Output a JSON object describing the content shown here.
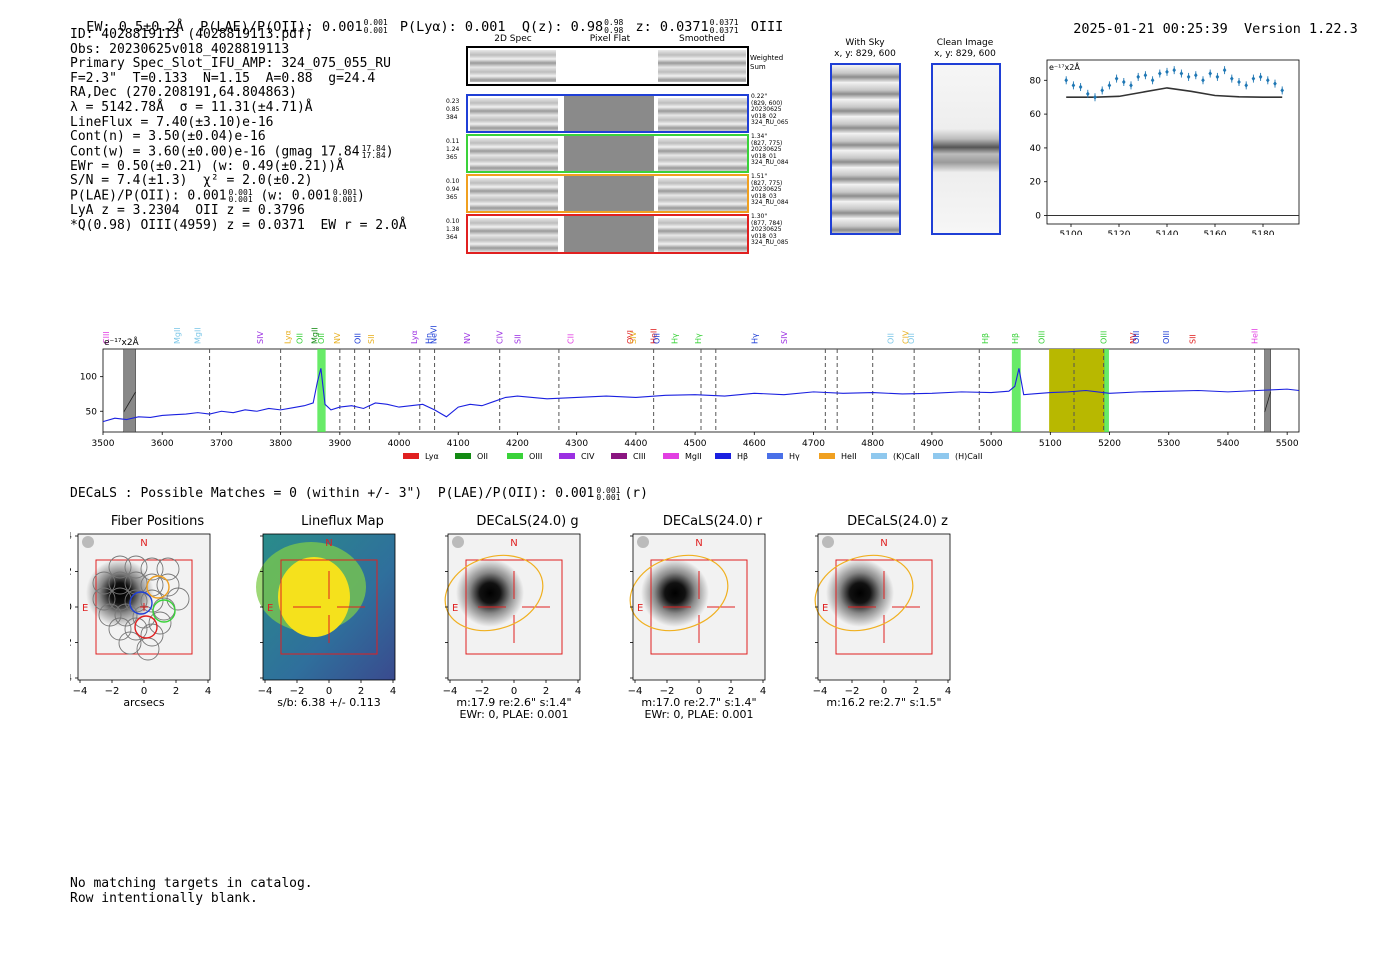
{
  "header": {
    "ew": "EW: 0.5±0.2Å",
    "plae": "P(LAE)/P(OII): 0.001",
    "plae_sup": "0.001",
    "plae_sub": "0.001",
    "plya": "P(Lyα): 0.001",
    "qz": "Q(z): 0.98",
    "qz_sup": "0.98",
    "qz_sub": "0.98",
    "z": "z: 0.0371",
    "z_sup": "0.0371",
    "z_sub": "0.0371",
    "line": "OIII",
    "timestamp": "2025-01-21 00:25:39",
    "version": "Version 1.22.3"
  },
  "info": {
    "lines": [
      "ID: 4028819113 (4028819113.pdf)",
      "Obs: 20230625v018_4028819113",
      "Primary Spec_Slot_IFU_AMP: 324_075_055_RU",
      "F=2.3\"  T=0.133  N=1.15  A=0.88  g=24.4",
      "RA,Dec (270.208191,64.804863)",
      "λ = 5142.78Å  σ = 11.31(±4.71)Å",
      "LineFlux = 7.40(±3.10)e-16",
      "Cont(n) = 3.50(±0.04)e-16",
      "Cont(w) = 3.60(±0.00)e-16 (gmag 17.84",
      "EWr = 0.50(±0.21) (w: 0.49(±0.21))Å",
      "S/N = 7.4(±1.3)  χ² = 2.0(±0.2)",
      "P(LAE)/P(OII): 0.001",
      "LyA z = 3.2304  OII z = 0.3796",
      "*Q(0.98) OIII(4959) z = 0.0371  EW r = 2.0Å"
    ],
    "gmag_sup": "17.84",
    "gmag_sub": "17.84",
    "plae_sup": "0.001",
    "plae_sub": "0.001",
    "plae_w": " (w: 0.001",
    "plae_w_sup": "0.001",
    "plae_w_sub": "0.001",
    "plae_w_close": ")"
  },
  "spectra_panel": {
    "col_2d": "2D Spec",
    "col_flat": "Pixel Flat",
    "col_smooth": "Smoothed",
    "weighted_sum": "Weighted Sum",
    "rows": [
      {
        "left": [
          "0.23",
          "0.85",
          "384"
        ],
        "right": [
          "0.22\"",
          "(829, 600)",
          "20230625",
          "v018_02",
          "324_RU_065"
        ],
        "color": "#1f3fd6"
      },
      {
        "left": [
          "0.11",
          "1.24",
          "365"
        ],
        "right": [
          "1.34\"",
          "(827, 775)",
          "20230625",
          "v018_01",
          "324_RU_084"
        ],
        "color": "#3ad23a"
      },
      {
        "left": [
          "0.10",
          "0.94",
          "365"
        ],
        "right": [
          "1.51\"",
          "(827, 775)",
          "20230625",
          "v018_03",
          "324_RU_084"
        ],
        "color": "#f0a020"
      },
      {
        "left": [
          "0.10",
          "1.38",
          "364"
        ],
        "right": [
          "1.30\"",
          "(877, 784)",
          "20230625",
          "v018_03",
          "324_RU_085"
        ],
        "color": "#e02020"
      }
    ]
  },
  "sky_panels": {
    "with_sky_title": "With Sky",
    "with_sky_coords": "x, y: 829, 600",
    "clean_title": "Clean Image",
    "clean_coords": "x, y: 829, 600"
  },
  "zoom_chart": {
    "unit_label": "e⁻¹⁷x2Å",
    "chart_data": {
      "type": "scatter",
      "x": [
        5098,
        5101,
        5104,
        5107,
        5110,
        5113,
        5116,
        5119,
        5122,
        5125,
        5128,
        5131,
        5134,
        5137,
        5140,
        5143,
        5146,
        5149,
        5152,
        5155,
        5158,
        5161,
        5164,
        5167,
        5170,
        5173,
        5176,
        5179,
        5182,
        5185,
        5188
      ],
      "y": [
        80,
        77,
        76,
        72,
        70,
        74,
        77,
        81,
        79,
        77,
        82,
        83,
        80,
        84,
        85,
        86,
        84,
        82,
        83,
        80,
        84,
        82,
        86,
        81,
        79,
        77,
        81,
        82,
        80,
        78,
        74
      ],
      "model_x": [
        5098,
        5110,
        5120,
        5130,
        5140,
        5150,
        5160,
        5170,
        5180,
        5188
      ],
      "model_y": [
        70,
        70,
        70.5,
        73,
        75.5,
        73.5,
        71,
        70.2,
        70,
        70
      ],
      "xlim": [
        5090,
        5195
      ],
      "ylim": [
        -5,
        92
      ],
      "xticks": [
        5100,
        5120,
        5140,
        5160,
        5180
      ],
      "yticks": [
        0,
        20,
        40,
        60,
        80
      ]
    }
  },
  "main_spectrum": {
    "unit_label": "e⁻¹⁷x2Å",
    "chart_data": {
      "type": "line",
      "xlim": [
        3500,
        5520
      ],
      "ylim": [
        20,
        140
      ],
      "xticks": [
        3500,
        3600,
        3700,
        3800,
        3900,
        4000,
        4100,
        4200,
        4300,
        4400,
        4500,
        4600,
        4700,
        4800,
        4900,
        5000,
        5100,
        5200,
        5300,
        5400,
        5500
      ],
      "yticks": [
        50,
        100
      ],
      "x": [
        3500,
        3520,
        3540,
        3560,
        3580,
        3600,
        3620,
        3640,
        3660,
        3680,
        3700,
        3720,
        3740,
        3760,
        3780,
        3800,
        3820,
        3840,
        3855,
        3862,
        3868,
        3875,
        3885,
        3900,
        3920,
        3940,
        3960,
        3980,
        4000,
        4020,
        4040,
        4060,
        4080,
        4100,
        4120,
        4140,
        4160,
        4180,
        4200,
        4250,
        4300,
        4350,
        4400,
        4450,
        4500,
        4550,
        4600,
        4650,
        4700,
        4750,
        4800,
        4850,
        4900,
        4950,
        5000,
        5030,
        5040,
        5047,
        5055,
        5070,
        5100,
        5130,
        5160,
        5200,
        5250,
        5300,
        5350,
        5400,
        5450,
        5500,
        5520
      ],
      "y": [
        35,
        40,
        38,
        42,
        41,
        44,
        45,
        46,
        48,
        46,
        50,
        48,
        52,
        50,
        54,
        52,
        55,
        58,
        62,
        92,
        112,
        60,
        52,
        56,
        58,
        54,
        62,
        60,
        56,
        58,
        60,
        52,
        42,
        56,
        60,
        58,
        64,
        70,
        72,
        68,
        70,
        72,
        70,
        73,
        74,
        72,
        76,
        74,
        78,
        76,
        77,
        75,
        76,
        78,
        77,
        79,
        86,
        112,
        74,
        75,
        77,
        78,
        80,
        76,
        78,
        79,
        80,
        78,
        80,
        82,
        80
      ],
      "shaded_green": [
        [
          3862,
          3876
        ],
        [
          5035,
          5050
        ],
        [
          5191,
          5199
        ]
      ],
      "shaded_olive": [
        [
          5098,
          5192
        ]
      ],
      "shaded_gray": [
        [
          3535,
          3555
        ],
        [
          5462,
          5472
        ]
      ],
      "dashed_lines": [
        3680,
        3800,
        3900,
        3925,
        3950,
        4035,
        4060,
        4170,
        4270,
        4430,
        4510,
        4535,
        4720,
        4740,
        4800,
        4870,
        4980,
        5140,
        5190,
        5445
      ],
      "line_labels": [
        {
          "name": "CIII",
          "x": 3505,
          "color": "#e23fe2"
        },
        {
          "name": "MgII",
          "x": 3625,
          "color": "#7fc8e8"
        },
        {
          "name": "MgII",
          "x": 3660,
          "color": "#7fc8e8"
        },
        {
          "name": "SIV",
          "x": 3765,
          "color": "#9b30e2"
        },
        {
          "name": "Lyα",
          "x": 3812,
          "color": "#e8b020"
        },
        {
          "name": "OII",
          "x": 3832,
          "color": "#3ad23a"
        },
        {
          "name": "MgII",
          "x": 3857,
          "color": "#138a13"
        },
        {
          "name": "OII",
          "x": 3868,
          "color": "#3ad23a"
        },
        {
          "name": "NV",
          "x": 3895,
          "color": "#e8b020"
        },
        {
          "name": "OII",
          "x": 3930,
          "color": "#1f3fd6"
        },
        {
          "name": "SII",
          "x": 3953,
          "color": "#e8b020"
        },
        {
          "name": "Lyα",
          "x": 4025,
          "color": "#9b30e2"
        },
        {
          "name": "Hη",
          "x": 4050,
          "color": "#1f3fd6"
        },
        {
          "name": "NeVI",
          "x": 4058,
          "color": "#1f3fd6"
        },
        {
          "name": "NV",
          "x": 4115,
          "color": "#9b30e2"
        },
        {
          "name": "CIV",
          "x": 4170,
          "color": "#9b30e2"
        },
        {
          "name": "SII",
          "x": 4200,
          "color": "#9b30e2"
        },
        {
          "name": "CII",
          "x": 4290,
          "color": "#e23fe2"
        },
        {
          "name": "OVI",
          "x": 4390,
          "color": "#e02020"
        },
        {
          "name": "SIV",
          "x": 4395,
          "color": "#e8b020"
        },
        {
          "name": "HeII",
          "x": 4430,
          "color": "#e02020"
        },
        {
          "name": "OII",
          "x": 4435,
          "color": "#1f3fd6"
        },
        {
          "name": "Hγ",
          "x": 4465,
          "color": "#3ad23a"
        },
        {
          "name": "Hγ",
          "x": 4505,
          "color": "#3ad23a"
        },
        {
          "name": "Hγ",
          "x": 4600,
          "color": "#1f3fd6"
        },
        {
          "name": "SIV",
          "x": 4650,
          "color": "#9b30e2"
        },
        {
          "name": "OII",
          "x": 4830,
          "color": "#7fc8e8"
        },
        {
          "name": "CIV",
          "x": 4855,
          "color": "#e8b020"
        },
        {
          "name": "OII",
          "x": 4865,
          "color": "#7fc8e8"
        },
        {
          "name": "Hβ",
          "x": 4990,
          "color": "#3ad23a"
        },
        {
          "name": "Hβ",
          "x": 5040,
          "color": "#3ad23a"
        },
        {
          "name": "OIII",
          "x": 5085,
          "color": "#3ad23a"
        },
        {
          "name": "OIII",
          "x": 5190,
          "color": "#3ad23a"
        },
        {
          "name": "NV",
          "x": 5240,
          "color": "#e02020"
        },
        {
          "name": "OIII",
          "x": 5245,
          "color": "#1f3fd6"
        },
        {
          "name": "OIII",
          "x": 5295,
          "color": "#1f3fd6"
        },
        {
          "name": "SII",
          "x": 5340,
          "color": "#e02020"
        },
        {
          "name": "HeII",
          "x": 5445,
          "color": "#e23fe2"
        }
      ],
      "legend": [
        {
          "label": "Lyα",
          "color": "#e02020"
        },
        {
          "label": "OII",
          "color": "#138a13"
        },
        {
          "label": "OIII",
          "color": "#3ad23a"
        },
        {
          "label": "CIV",
          "color": "#9b30e2"
        },
        {
          "label": "CIII",
          "color": "#8a1580"
        },
        {
          "label": "MgII",
          "color": "#e23fe2"
        },
        {
          "label": "Hβ",
          "color": "#1a20e0"
        },
        {
          "label": "Hγ",
          "color": "#4a70e8"
        },
        {
          "label": "HeII",
          "color": "#f0a020"
        },
        {
          "label": "(K)CaII",
          "color": "#8fc8ee"
        },
        {
          "label": "(H)CaII",
          "color": "#8fc8ee"
        }
      ]
    }
  },
  "decals": {
    "summary": "DECaLS : Possible Matches = 0 (within +/- 3\")  P(LAE)/P(OII): 0.001",
    "summary_sup": "0.001",
    "summary_sub": "0.001",
    "summary_tail": "(r)"
  },
  "cutouts": [
    {
      "title": "Fiber Positions",
      "caption1": "arcsecs",
      "caption2": "",
      "type": "fibers"
    },
    {
      "title": "Lineflux Map",
      "caption1": "s/b: 6.38 +/- 0.113",
      "caption2": "",
      "type": "lineflux"
    },
    {
      "title": "DECaLS(24.0) g",
      "caption1": "m:17.9  re:2.6\"  s:1.4\"",
      "caption2": "EWr: 0, PLAE: 0.001",
      "type": "decals"
    },
    {
      "title": "DECaLS(24.0) r",
      "caption1": "m:17.0  re:2.7\"  s:1.4\"",
      "caption2": "EWr: 0, PLAE: 0.001",
      "type": "decals"
    },
    {
      "title": "DECaLS(24.0) z",
      "caption1": "m:16.2  re:2.7\"  s:1.5\"",
      "caption2": "",
      "type": "decals"
    }
  ],
  "cutout_axes": {
    "ticks": [
      "−4",
      "−2",
      "0",
      "2",
      "4"
    ],
    "north": "N",
    "east": "E"
  },
  "footer": {
    "line1": "No matching targets in catalog.",
    "line2": "Row intentionally blank."
  },
  "colors": {
    "spectrum": "#1a20e0",
    "marker": "#1f77b4",
    "olive": "#b8b800",
    "green_band": "#4de84d",
    "red": "#e02020",
    "ellipse": "#f0b020"
  }
}
